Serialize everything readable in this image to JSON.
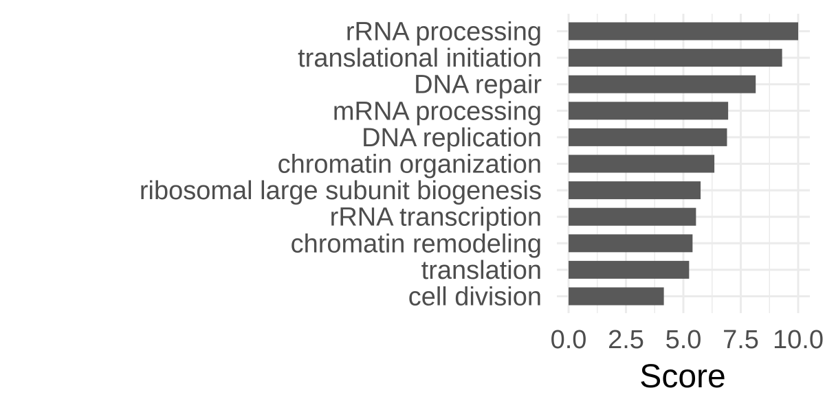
{
  "chart_data": {
    "type": "bar",
    "orientation": "horizontal",
    "categories": [
      "rRNA processing",
      "translational initiation",
      "DNA repair",
      "mRNA processing",
      "DNA replication",
      "chromatin organization",
      "ribosomal large subunit biogenesis",
      "rRNA transcription",
      "chromatin remodeling",
      "translation",
      "cell division"
    ],
    "values": [
      10.0,
      9.3,
      8.15,
      6.95,
      6.9,
      6.35,
      5.75,
      5.55,
      5.4,
      5.25,
      4.15
    ],
    "xlabel": "Score",
    "ylabel": "",
    "title": "",
    "xlim": [
      0,
      10.5
    ],
    "xticks": [
      0,
      2.5,
      5,
      7.5,
      10
    ],
    "xtick_labels": [
      "0.0",
      "2.5",
      "5.0",
      "7.5",
      "10.0"
    ],
    "grid": true,
    "legend": "none",
    "bar_color": "#595959",
    "grid_color": "#ebebeb"
  }
}
